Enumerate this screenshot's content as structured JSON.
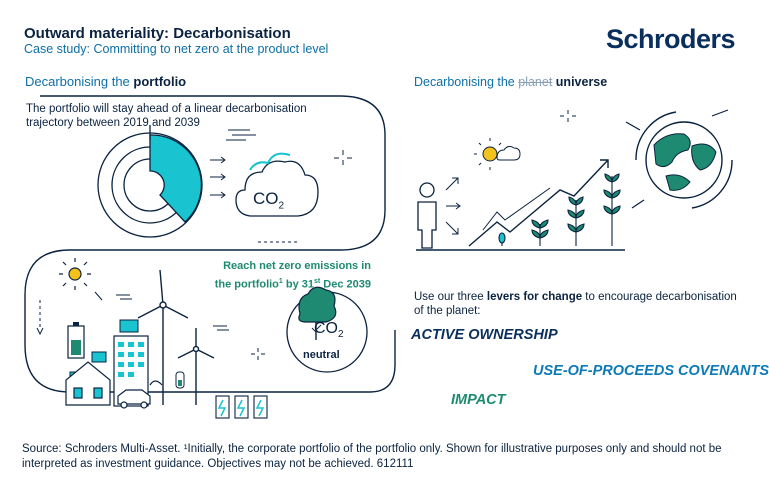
{
  "header": {
    "title": "Outward materiality: Decarbonisation",
    "subtitle": "Case study: Committing to net zero at the product level",
    "logo": "Schroders"
  },
  "left_section": {
    "heading_prefix": "Decarbonising the",
    "heading_bold": "portfolio",
    "paragraph": "The portfolio will stay ahead of a linear decarbonisation trajectory between 2019 and 2039",
    "co2_label": "CO",
    "co2_sub": "2",
    "net_zero_line1": "Reach net zero emissions in",
    "net_zero_line2_a": "the portfolio",
    "net_zero_line2_sup": "1",
    "net_zero_line2_b": " by 31",
    "net_zero_line2_sup2": "st",
    "net_zero_line2_c": " Dec 2039",
    "co2_neutral_label": "CO",
    "co2_neutral_sub": "2",
    "neutral": "neutral"
  },
  "right_section": {
    "heading_prefix": "Decarbonising the",
    "heading_struck": "planet",
    "heading_bold": "universe",
    "paragraph_a": "Use our three ",
    "paragraph_bold": "levers for change",
    "paragraph_b": " to encourage decarbonisation of the planet:",
    "levers": [
      "ACTIVE OWNERSHIP",
      "USE-OF-PROCEEDS COVENANTS",
      "IMPACT"
    ]
  },
  "footer": {
    "text": "Source: Schroders Multi-Asset. ¹Initially, the corporate portfolio of the portfolio only. Shown for illustrative purposes only and should not be interpreted as investment guidance. Objectives may not be achieved. 612111"
  },
  "colors": {
    "navy": "#0b2340",
    "blue": "#0d6fa8",
    "teal": "#1e8a72",
    "cyan": "#19c3cf"
  }
}
